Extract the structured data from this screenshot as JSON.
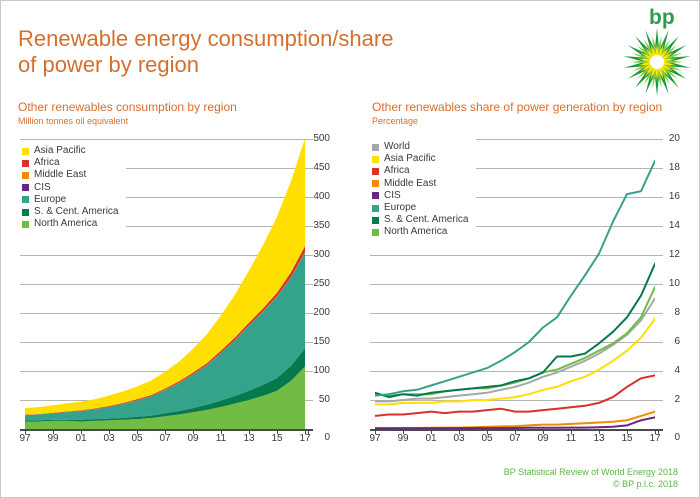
{
  "slide": {
    "title": "Renewable energy consumption/share\nof power by region",
    "logo_text": "bp",
    "footer_line1": "BP Statistical Review of World Energy 2018",
    "footer_line2": "© BP p.l.c. 2018"
  },
  "colors": {
    "accent_orange": "#d4702f",
    "footer_green": "#5fb347",
    "logo_green": "#2f9b4c",
    "gridline": "#b5b5b5",
    "axis": "#4a4a49",
    "text": "#3a3a39"
  },
  "chart_data": [
    {
      "type": "area",
      "title": "Other renewables consumption by region",
      "subtitle": "Million tonnes oil equivalent",
      "x_tick_labels": [
        "97",
        "99",
        "01",
        "03",
        "05",
        "07",
        "09",
        "11",
        "13",
        "15",
        "17"
      ],
      "ylim": [
        0,
        500
      ],
      "ytick_step": 50,
      "zero_label": "0",
      "grid": true,
      "legend_position": "top-left-inside",
      "series": [
        {
          "name": "Asia Pacific",
          "color": "#ffdf00",
          "values": [
            11,
            12,
            13,
            14,
            15,
            16,
            18,
            20,
            22,
            25,
            29,
            34,
            41,
            50,
            61,
            74,
            90,
            109,
            131,
            157,
            186
          ]
        },
        {
          "name": "Africa",
          "color": "#d7312e",
          "values": [
            0.5,
            0.6,
            0.7,
            0.8,
            1,
            1.1,
            1.3,
            1.5,
            1.8,
            2,
            2.2,
            2.5,
            2.8,
            3.1,
            3.5,
            4,
            4.5,
            5,
            6,
            8,
            10
          ]
        },
        {
          "name": "Middle East",
          "color": "#ef8d00",
          "values": [
            0.1,
            0.1,
            0.1,
            0.1,
            0.1,
            0.1,
            0.2,
            0.2,
            0.2,
            0.2,
            0.3,
            0.3,
            0.3,
            0.4,
            0.4,
            0.5,
            0.5,
            0.6,
            0.7,
            0.8,
            1
          ]
        },
        {
          "name": "CIS",
          "color": "#65287a",
          "values": [
            0.2,
            0.2,
            0.2,
            0.2,
            0.2,
            0.2,
            0.2,
            0.2,
            0.2,
            0.2,
            0.2,
            0.2,
            0.2,
            0.2,
            0.2,
            0.2,
            0.2,
            0.2,
            0.2,
            0.3,
            0.3
          ]
        },
        {
          "name": "Europe",
          "color": "#35a28c",
          "values": [
            9,
            10,
            11,
            13,
            15,
            17,
            20,
            24,
            28,
            33,
            40,
            48,
            58,
            68,
            82,
            96,
            112,
            126,
            140,
            152,
            165
          ]
        },
        {
          "name": "S. & Cent. America",
          "color": "#077a4d",
          "values": [
            2,
            2,
            2,
            2,
            3,
            3,
            3,
            3,
            4,
            4,
            5,
            6,
            7,
            9,
            11,
            13,
            16,
            19,
            22,
            26,
            31
          ]
        },
        {
          "name": "North America",
          "color": "#72bb44",
          "values": [
            13,
            13,
            14,
            14,
            13,
            14,
            15,
            16,
            17,
            19,
            22,
            25,
            29,
            33,
            38,
            44,
            50,
            57,
            66,
            83,
            108
          ]
        }
      ],
      "stack_order": [
        "North America",
        "S. & Cent. America",
        "Europe",
        "CIS",
        "Middle East",
        "Africa",
        "Asia Pacific"
      ]
    },
    {
      "type": "line",
      "title": "Other renewables share of power generation by region",
      "subtitle": "Percentage",
      "x_tick_labels": [
        "97",
        "99",
        "01",
        "03",
        "05",
        "07",
        "09",
        "11",
        "13",
        "15",
        "17"
      ],
      "ylim": [
        0,
        20
      ],
      "ytick_step": 2,
      "zero_label": "0",
      "grid": true,
      "legend_position": "top-left-inside",
      "series": [
        {
          "name": "World",
          "color": "#a5a7a8",
          "values": [
            1.9,
            1.9,
            2.0,
            2.1,
            2.1,
            2.2,
            2.3,
            2.4,
            2.5,
            2.7,
            2.9,
            3.2,
            3.6,
            3.9,
            4.3,
            4.7,
            5.2,
            5.8,
            6.5,
            7.5,
            9.0
          ]
        },
        {
          "name": "Asia Pacific",
          "color": "#ffdf00",
          "values": [
            1.7,
            1.7,
            1.8,
            1.8,
            1.8,
            1.9,
            1.9,
            2.0,
            2.0,
            2.1,
            2.2,
            2.4,
            2.7,
            2.9,
            3.3,
            3.6,
            4.1,
            4.7,
            5.4,
            6.3,
            7.6
          ]
        },
        {
          "name": "Africa",
          "color": "#d7312e",
          "values": [
            0.9,
            1.0,
            1.0,
            1.1,
            1.2,
            1.1,
            1.2,
            1.2,
            1.3,
            1.4,
            1.2,
            1.2,
            1.3,
            1.4,
            1.5,
            1.6,
            1.8,
            2.2,
            2.9,
            3.5,
            3.7
          ]
        },
        {
          "name": "Middle East",
          "color": "#ef8d00",
          "values": [
            0.05,
            0.05,
            0.06,
            0.07,
            0.08,
            0.1,
            0.1,
            0.12,
            0.15,
            0.18,
            0.2,
            0.25,
            0.3,
            0.3,
            0.35,
            0.4,
            0.45,
            0.5,
            0.6,
            0.9,
            1.2
          ]
        },
        {
          "name": "CIS",
          "color": "#65287a",
          "values": [
            0.05,
            0.05,
            0.05,
            0.05,
            0.05,
            0.05,
            0.06,
            0.06,
            0.06,
            0.07,
            0.07,
            0.08,
            0.08,
            0.09,
            0.1,
            0.1,
            0.12,
            0.15,
            0.25,
            0.6,
            0.8
          ]
        },
        {
          "name": "Europe",
          "color": "#35a28c",
          "values": [
            2.3,
            2.4,
            2.6,
            2.7,
            3.0,
            3.3,
            3.6,
            3.9,
            4.2,
            4.7,
            5.3,
            6.0,
            7.0,
            7.7,
            9.2,
            10.6,
            12.1,
            14.3,
            16.2,
            16.4,
            18.5
          ]
        },
        {
          "name": "S. & Cent. America",
          "color": "#077a4d",
          "values": [
            2.5,
            2.2,
            2.4,
            2.3,
            2.5,
            2.6,
            2.7,
            2.8,
            2.9,
            3.0,
            3.3,
            3.5,
            3.9,
            5.0,
            5.0,
            5.2,
            5.9,
            6.7,
            7.7,
            9.2,
            11.4
          ]
        },
        {
          "name": "North America",
          "color": "#72bb44",
          "values": [
            2.4,
            2.3,
            2.4,
            2.4,
            2.4,
            2.6,
            2.7,
            2.8,
            2.8,
            3.0,
            3.2,
            3.5,
            3.9,
            4.1,
            4.5,
            4.9,
            5.4,
            5.9,
            6.6,
            7.7,
            9.8
          ]
        }
      ],
      "draw_order": [
        "World",
        "Asia Pacific",
        "Africa",
        "Middle East",
        "CIS",
        "North America",
        "S. & Cent. America",
        "Europe"
      ]
    }
  ]
}
